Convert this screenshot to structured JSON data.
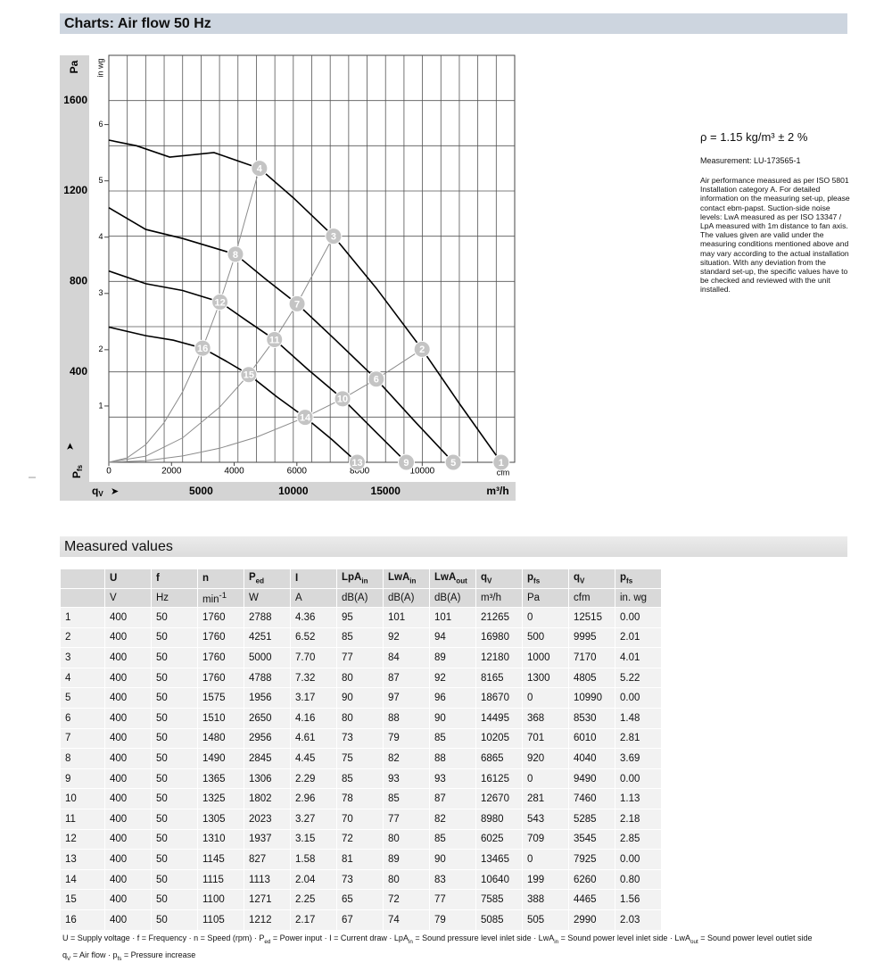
{
  "header": {
    "title": "Charts: Air flow 50 Hz"
  },
  "chart_data": {
    "type": "fan-curve",
    "ylabel_top": "Pa",
    "y2label": "in wg",
    "xlabel_right": "m³/h",
    "x2label": "cfm",
    "ylabel": {
      "text": "P",
      "sub": "fs"
    },
    "xlabel": {
      "text": "q",
      "sub": "V"
    },
    "xlim": [
      0,
      22000
    ],
    "ylim": [
      0,
      1800
    ],
    "x2lim": [
      0,
      12950
    ],
    "y2lim": [
      0,
      7.23
    ],
    "xticks": [
      5000,
      10000,
      15000
    ],
    "yticks": [
      400,
      800,
      1200,
      1600
    ],
    "x2ticks": [
      0,
      2000,
      4000,
      6000,
      8000,
      10000
    ],
    "y2ticks": [
      1,
      2,
      3,
      4,
      5,
      6
    ],
    "xgrid": [
      1000,
      2000,
      3000,
      4000,
      5000,
      6000,
      7000,
      8000,
      9000,
      10000,
      11000,
      12000,
      13000,
      14000,
      15000,
      16000,
      17000,
      18000,
      19000,
      20000,
      21000
    ],
    "ygrid": [
      200,
      400,
      600,
      800,
      1000,
      1200,
      1400,
      1600
    ],
    "curve_color": "#000000",
    "system_color": "#8c8c8c",
    "marker_color": "#c4c4c4",
    "speed_curves": [
      {
        "x": [
          0,
          1500,
          3300,
          5700,
          8165,
          10000,
          12180,
          14500,
          16980,
          19000,
          21265
        ],
        "values": [
          1425,
          1400,
          1350,
          1370,
          1300,
          1170,
          1000,
          770,
          500,
          260,
          0
        ]
      },
      {
        "x": [
          0,
          2000,
          4000,
          6865,
          8500,
          10205,
          12300,
          14495,
          16600,
          18670
        ],
        "values": [
          1126,
          1030,
          990,
          920,
          810,
          701,
          540,
          368,
          180,
          0
        ]
      },
      {
        "x": [
          0,
          2000,
          4000,
          6025,
          7500,
          8980,
          10800,
          12670,
          14400,
          16125
        ],
        "values": [
          846,
          790,
          760,
          709,
          625,
          543,
          410,
          281,
          140,
          0
        ]
      },
      {
        "x": [
          0,
          2000,
          3500,
          5085,
          6300,
          7585,
          9100,
          10640,
          12100,
          13465
        ],
        "values": [
          598,
          560,
          540,
          505,
          450,
          388,
          290,
          199,
          100,
          0
        ]
      }
    ],
    "system_curves": [
      {
        "x": [
          0,
          1000,
          2000,
          3000,
          4000,
          5085,
          6025,
          6865,
          8165
        ],
        "values": [
          0,
          20,
          78,
          176,
          312,
          505,
          709,
          920,
          1300
        ]
      },
      {
        "x": [
          0,
          2000,
          4000,
          6000,
          7585,
          8980,
          10205,
          12180
        ],
        "values": [
          0,
          27,
          108,
          243,
          388,
          543,
          701,
          1000
        ]
      },
      {
        "x": [
          0,
          2000,
          4000,
          6000,
          8000,
          10640,
          12670,
          14495,
          16980
        ],
        "values": [
          0,
          7,
          28,
          62,
          111,
          199,
          281,
          368,
          500
        ]
      }
    ],
    "points": {
      "labels": [
        "1",
        "2",
        "3",
        "4",
        "5",
        "6",
        "7",
        "8",
        "9",
        "10",
        "11",
        "12",
        "13",
        "14",
        "15",
        "16"
      ],
      "x": [
        21265,
        16980,
        12180,
        8165,
        18670,
        14495,
        10205,
        6865,
        16125,
        12670,
        8980,
        6025,
        13465,
        10640,
        7585,
        5085
      ],
      "values": [
        0,
        500,
        1000,
        1300,
        0,
        368,
        701,
        920,
        0,
        281,
        543,
        709,
        0,
        199,
        388,
        505
      ]
    }
  },
  "notes": {
    "density": "ρ = 1.15 kg/m³ ± 2 %",
    "measurement": "Measurement: LU-173565-1",
    "text": "Air performance measured as per ISO 5801 Installation category A. For detailed information on the measuring set-up, please contact ebm-papst. Suction-side noise levels: LwA measured as per ISO 13347 / LpA measured with 1m distance to fan axis. The values given are valid under the measuring conditions mentioned above and may vary according to the actual installation situation. With any deviation from the standard set-up, the specific values have to be checked and reviewed with the unit installed."
  },
  "table": {
    "title": "Measured values",
    "header": [
      "U",
      "f",
      "n",
      {
        "text": "P",
        "sub": "ed"
      },
      "I",
      {
        "text": "LpA",
        "sub": "in"
      },
      {
        "text": "LwA",
        "sub": "in"
      },
      {
        "text": "LwA",
        "sub": "out"
      },
      {
        "text": "q",
        "sub": "V"
      },
      {
        "text": "p",
        "sub": "fs"
      },
      {
        "text": "q",
        "sub": "V"
      },
      {
        "text": "p",
        "sub": "fs"
      }
    ],
    "units": [
      "V",
      "Hz",
      {
        "text": "min",
        "sup": "-1"
      },
      "W",
      "A",
      "dB(A)",
      "dB(A)",
      "dB(A)",
      "m³/h",
      "Pa",
      "cfm",
      "in. wg"
    ],
    "rows": [
      [
        "1",
        "400",
        "50",
        "1760",
        "2788",
        "4.36",
        "95",
        "101",
        "101",
        "21265",
        "0",
        "12515",
        "0.00"
      ],
      [
        "2",
        "400",
        "50",
        "1760",
        "4251",
        "6.52",
        "85",
        "92",
        "94",
        "16980",
        "500",
        "9995",
        "2.01"
      ],
      [
        "3",
        "400",
        "50",
        "1760",
        "5000",
        "7.70",
        "77",
        "84",
        "89",
        "12180",
        "1000",
        "7170",
        "4.01"
      ],
      [
        "4",
        "400",
        "50",
        "1760",
        "4788",
        "7.32",
        "80",
        "87",
        "92",
        "8165",
        "1300",
        "4805",
        "5.22"
      ],
      [
        "5",
        "400",
        "50",
        "1575",
        "1956",
        "3.17",
        "90",
        "97",
        "96",
        "18670",
        "0",
        "10990",
        "0.00"
      ],
      [
        "6",
        "400",
        "50",
        "1510",
        "2650",
        "4.16",
        "80",
        "88",
        "90",
        "14495",
        "368",
        "8530",
        "1.48"
      ],
      [
        "7",
        "400",
        "50",
        "1480",
        "2956",
        "4.61",
        "73",
        "79",
        "85",
        "10205",
        "701",
        "6010",
        "2.81"
      ],
      [
        "8",
        "400",
        "50",
        "1490",
        "2845",
        "4.45",
        "75",
        "82",
        "88",
        "6865",
        "920",
        "4040",
        "3.69"
      ],
      [
        "9",
        "400",
        "50",
        "1365",
        "1306",
        "2.29",
        "85",
        "93",
        "93",
        "16125",
        "0",
        "9490",
        "0.00"
      ],
      [
        "10",
        "400",
        "50",
        "1325",
        "1802",
        "2.96",
        "78",
        "85",
        "87",
        "12670",
        "281",
        "7460",
        "1.13"
      ],
      [
        "11",
        "400",
        "50",
        "1305",
        "2023",
        "3.27",
        "70",
        "77",
        "82",
        "8980",
        "543",
        "5285",
        "2.18"
      ],
      [
        "12",
        "400",
        "50",
        "1310",
        "1937",
        "3.15",
        "72",
        "80",
        "85",
        "6025",
        "709",
        "3545",
        "2.85"
      ],
      [
        "13",
        "400",
        "50",
        "1145",
        "827",
        "1.58",
        "81",
        "89",
        "90",
        "13465",
        "0",
        "7925",
        "0.00"
      ],
      [
        "14",
        "400",
        "50",
        "1115",
        "1113",
        "2.04",
        "73",
        "80",
        "83",
        "10640",
        "199",
        "6260",
        "0.80"
      ],
      [
        "15",
        "400",
        "50",
        "1100",
        "1271",
        "2.25",
        "65",
        "72",
        "77",
        "7585",
        "388",
        "4465",
        "1.56"
      ],
      [
        "16",
        "400",
        "50",
        "1105",
        "1212",
        "2.17",
        "67",
        "74",
        "79",
        "5085",
        "505",
        "2990",
        "2.03"
      ]
    ]
  },
  "footer": [
    [
      {
        "text": "U = Supply voltage · f = Frequency · n = Speed (rpm) · P"
      },
      {
        "sub": "ed"
      },
      {
        "text": " = Power input · I = Current draw · LpA"
      },
      {
        "sub": "in"
      },
      {
        "text": " = Sound pressure level inlet side · LwA"
      },
      {
        "sub": "in"
      },
      {
        "text": " = Sound power level inlet side · LwA"
      },
      {
        "sub": "out"
      },
      {
        "text": " = Sound power level outlet side"
      }
    ],
    [
      {
        "text": "q"
      },
      {
        "sub": "V"
      },
      {
        "text": " = Air flow · p"
      },
      {
        "sub": "fs"
      },
      {
        "text": " = Pressure increase"
      }
    ]
  ]
}
